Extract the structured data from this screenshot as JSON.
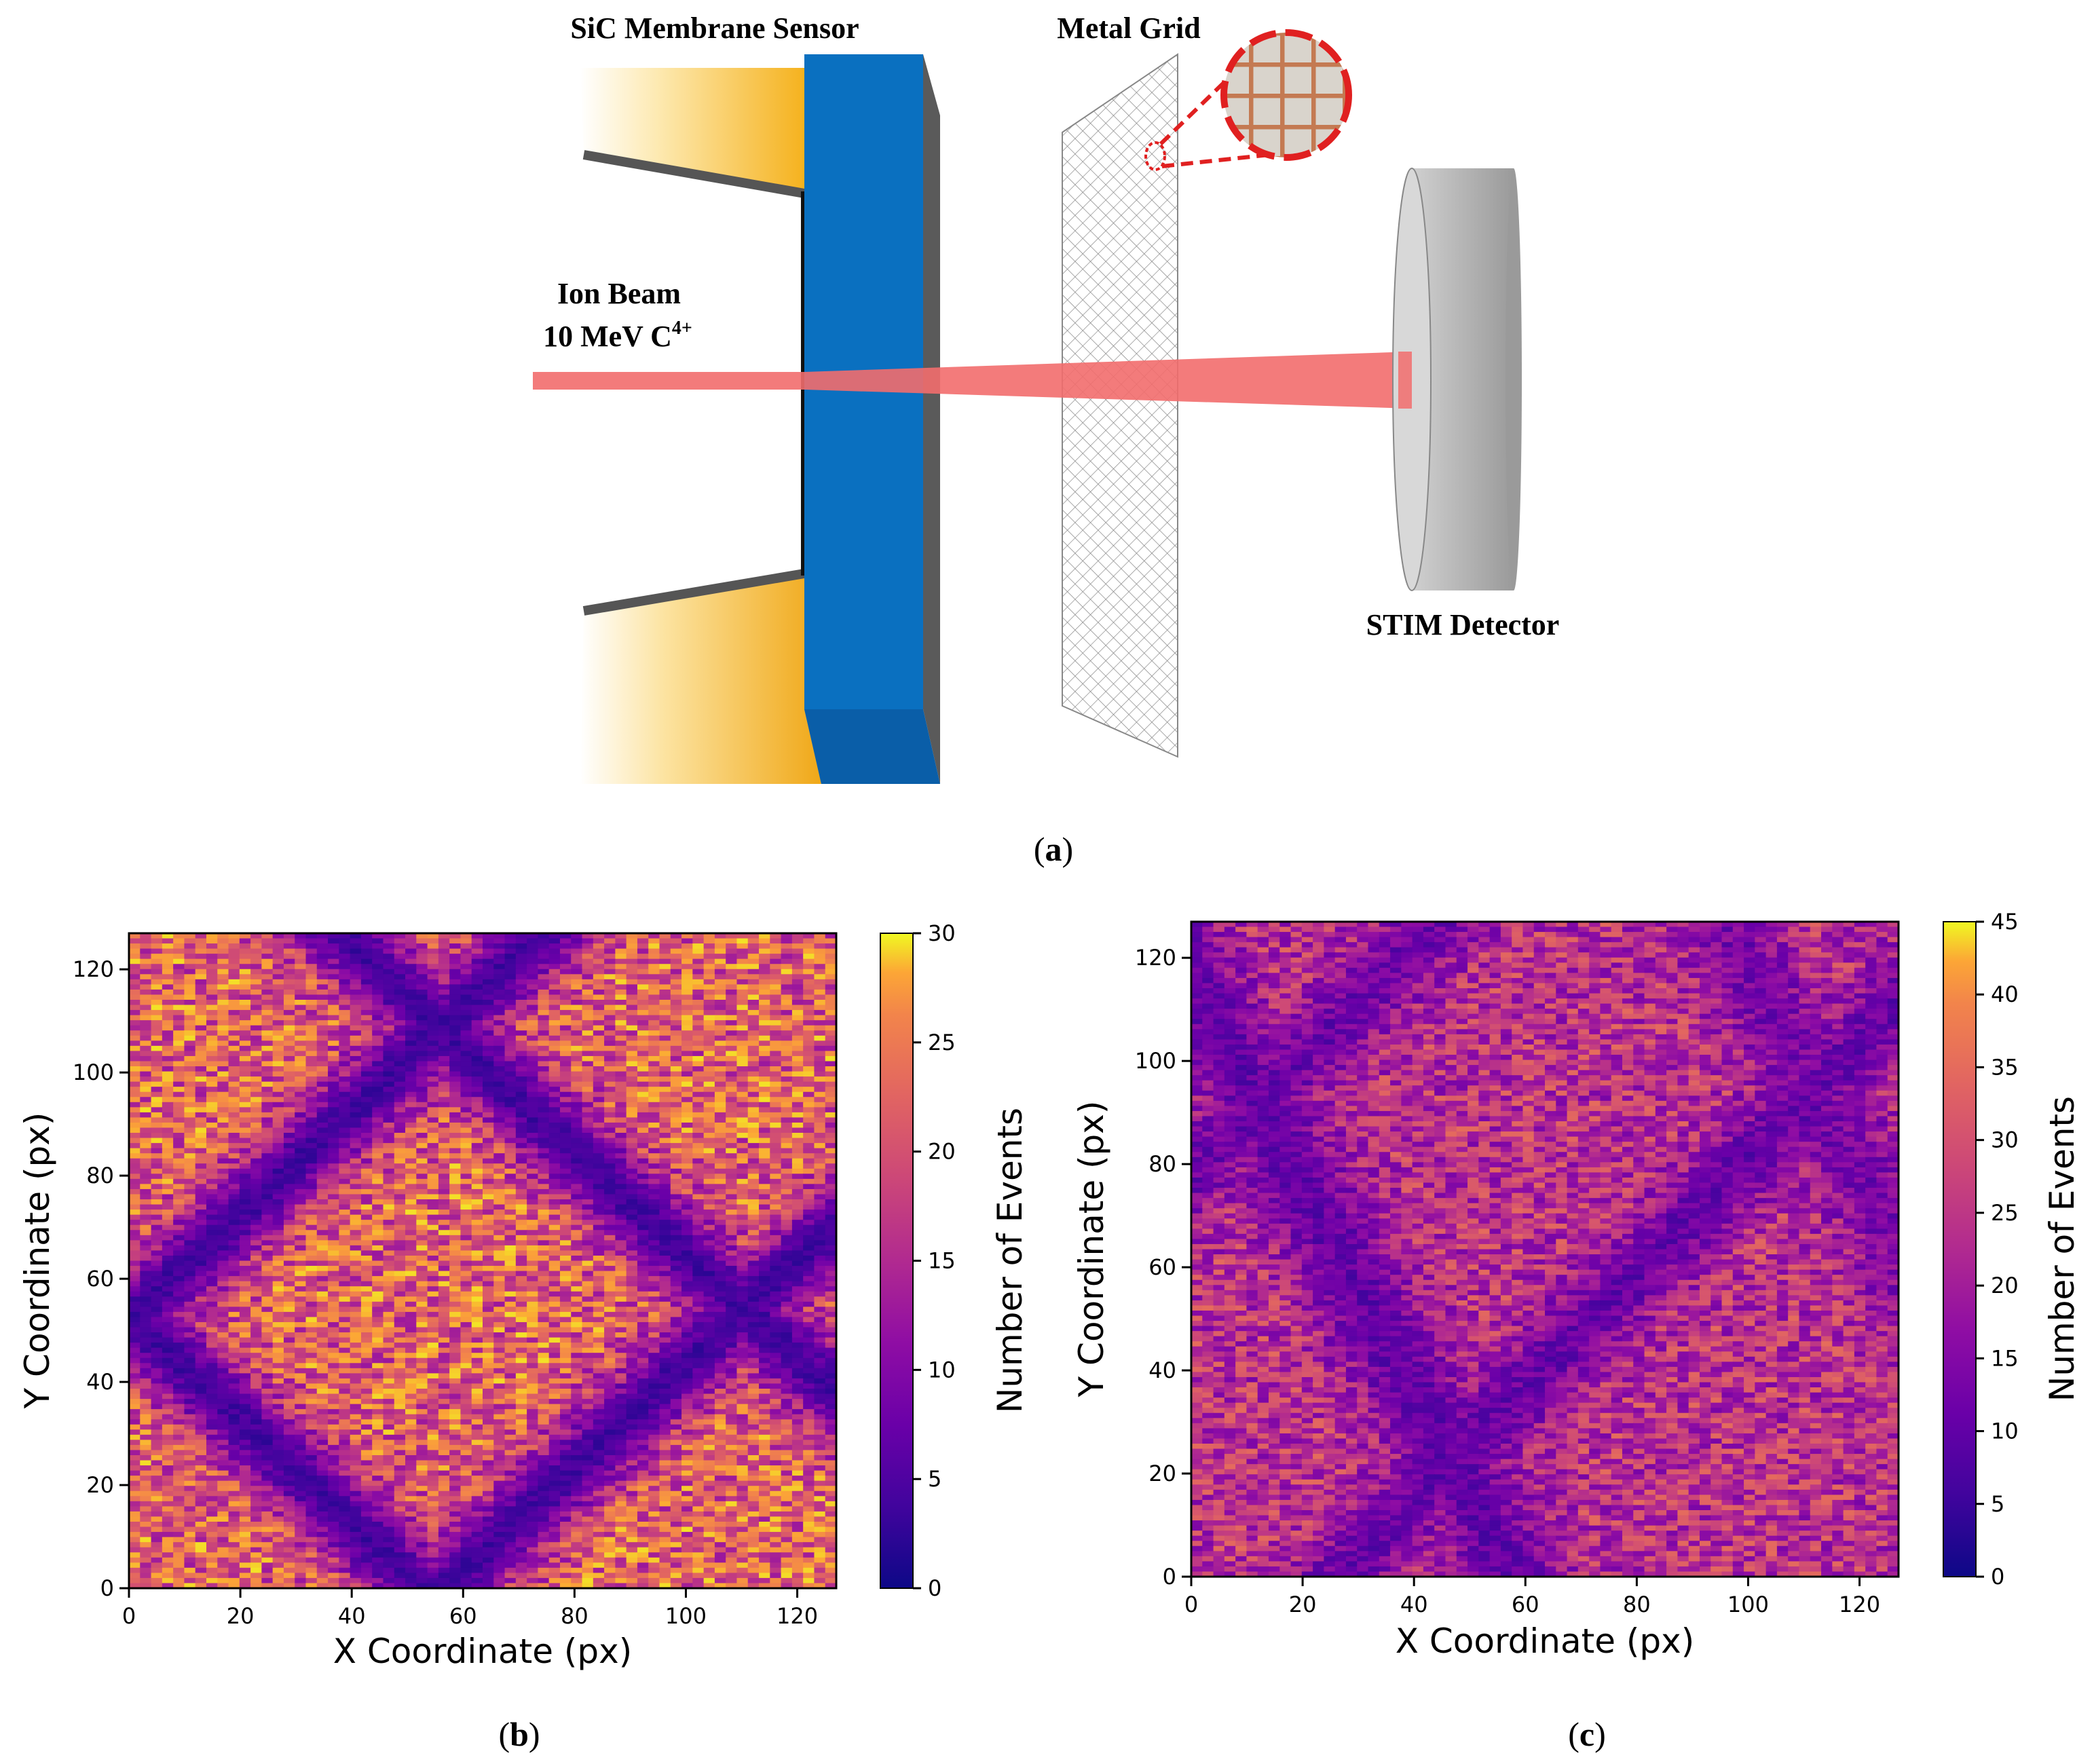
{
  "panel_a": {
    "sensor_label": "SiC Membrane Sensor",
    "grid_label": "Metal Grid",
    "beam_label_line1": "Ion Beam",
    "beam_label_line2": "10 MeV C",
    "beam_label_sup": "4+",
    "detector_label": "STIM Detector",
    "caption_letter": "a",
    "colors": {
      "gold": "#f5b21e",
      "blue": "#0a70c0",
      "beam": "#f26d6d",
      "detector": "#a6a6a6",
      "zoom_circle": "#e02020"
    }
  },
  "panel_b": {
    "caption_letter": "b",
    "xlabel": "X Coordinate (px)",
    "ylabel": "Y Coordinate (px)",
    "colorbar_label": "Number of Events",
    "colorbar_ticks": [
      "0",
      "5",
      "10",
      "15",
      "20",
      "25",
      "30"
    ],
    "x_ticks": [
      "0",
      "20",
      "40",
      "60",
      "80",
      "100",
      "120"
    ],
    "y_ticks": [
      "0",
      "20",
      "40",
      "60",
      "80",
      "100",
      "120"
    ]
  },
  "panel_c": {
    "caption_letter": "c",
    "xlabel": "X Coordinate (px)",
    "ylabel": "Y Coordinate (px)",
    "colorbar_label": "Number of Events",
    "colorbar_ticks": [
      "0",
      "5",
      "10",
      "15",
      "20",
      "25",
      "30",
      "35",
      "40",
      "45"
    ],
    "x_ticks": [
      "0",
      "20",
      "40",
      "60",
      "80",
      "100",
      "120"
    ],
    "y_ticks": [
      "0",
      "20",
      "40",
      "60",
      "80",
      "100",
      "120"
    ]
  },
  "chart_data": [
    {
      "type": "heatmap",
      "title": "",
      "xlabel": "X Coordinate (px)",
      "ylabel": "Y Coordinate (px)",
      "colorbar_label": "Number of Events",
      "colormap": "plasma",
      "xlim": [
        0,
        127
      ],
      "ylim": [
        0,
        127
      ],
      "clim": [
        0,
        30
      ],
      "pattern": "diamond-shaped bright grid opening centered near (58, 52) with dark grid bars forming an X-lattice; bright corners",
      "grid_on": false
    },
    {
      "type": "heatmap",
      "title": "",
      "xlabel": "X Coordinate (px)",
      "ylabel": "Y Coordinate (px)",
      "colorbar_label": "Number of Events",
      "colormap": "plasma",
      "xlim": [
        0,
        127
      ],
      "ylim": [
        0,
        127
      ],
      "clim": [
        0,
        45
      ],
      "pattern": "lower-contrast diagonal grid pattern with bright regions near (75, 105), (95, 40), (10, 80), (20, 20)",
      "grid_on": false
    }
  ]
}
